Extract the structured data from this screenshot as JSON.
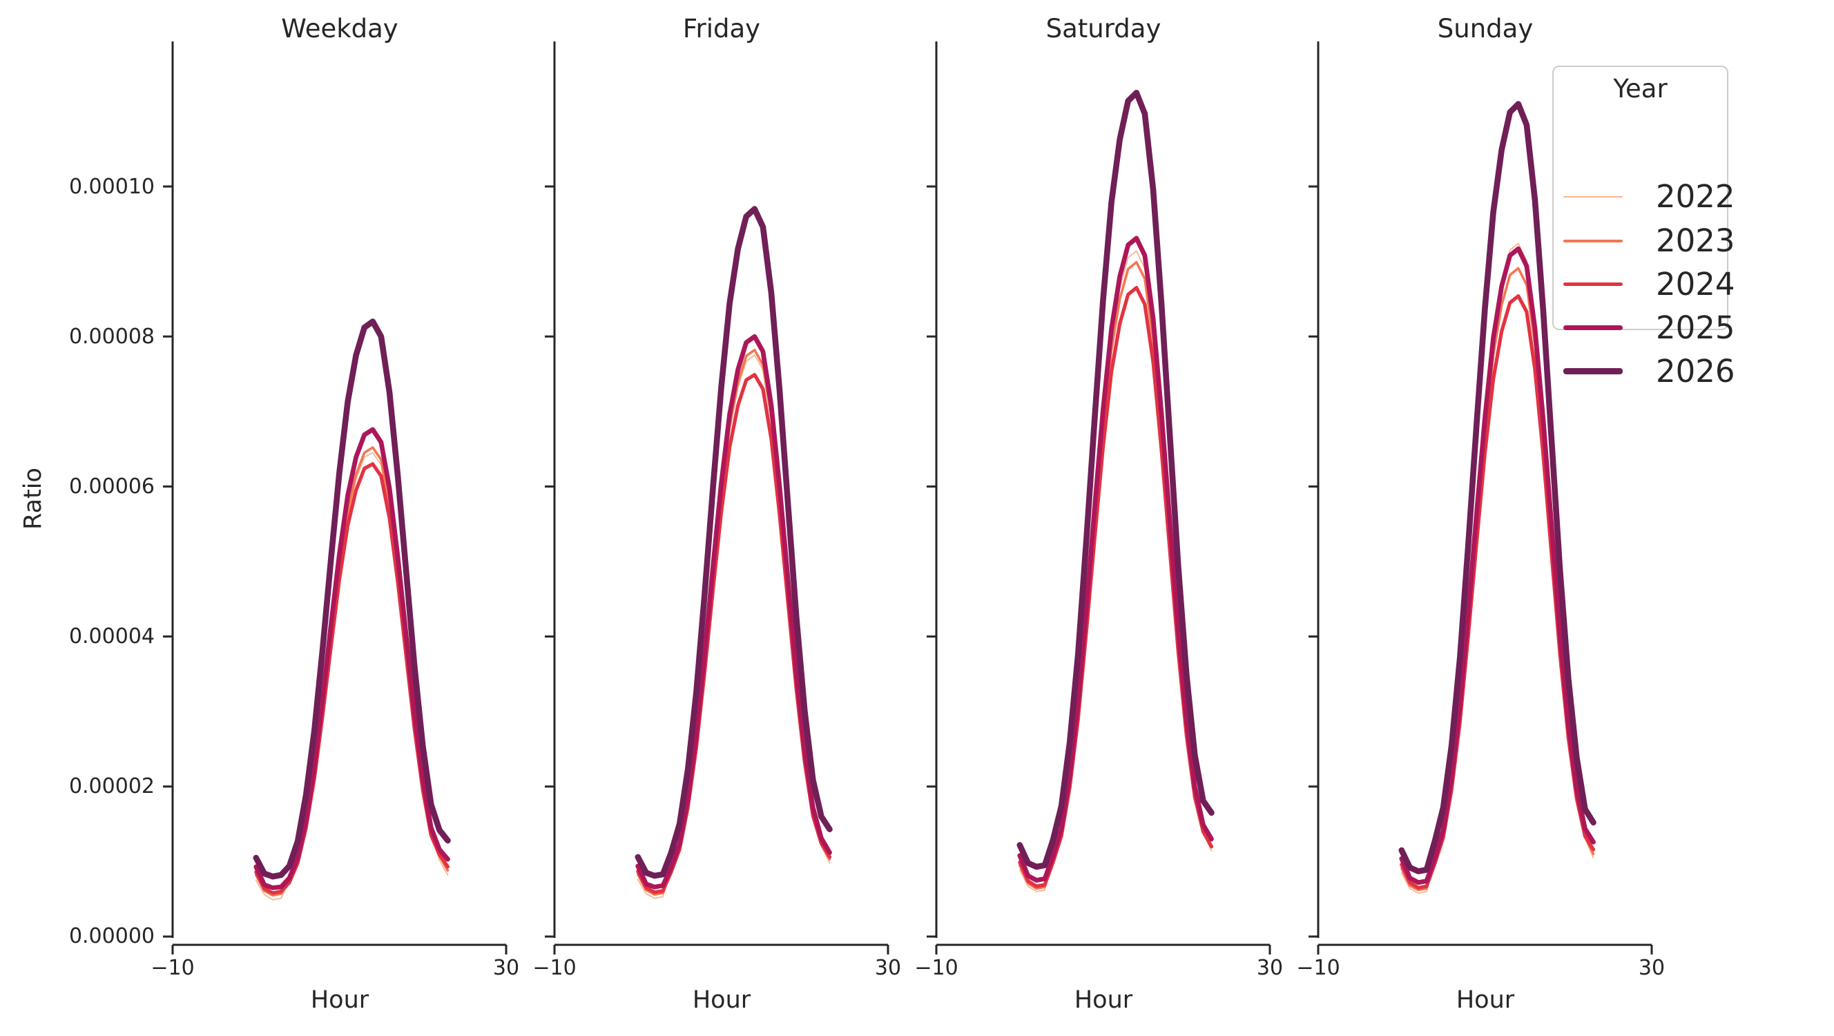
{
  "figure": {
    "background_color": "#ffffff",
    "text_color": "#262626",
    "spine_color": "#262626"
  },
  "chart_data": {
    "type": "line",
    "title": "",
    "xlabel": "Hour",
    "ylabel": "Ratio",
    "xlim": [
      -10,
      30
    ],
    "ylim": [
      0,
      0.000118
    ],
    "grid": false,
    "x_ticks": [
      -10,
      30
    ],
    "x_tick_labels": [
      "−10",
      "30"
    ],
    "y_ticks": [
      0.0,
      2e-05,
      4e-05,
      6e-05,
      8e-05,
      0.0001
    ],
    "y_tick_labels": [
      "0.00000",
      "0.00002",
      "0.00004",
      "0.00006",
      "0.00008",
      "0.00010"
    ],
    "hours": [
      0,
      1,
      2,
      3,
      4,
      5,
      6,
      7,
      8,
      9,
      10,
      11,
      12,
      13,
      14,
      15,
      16,
      17,
      18,
      19,
      20,
      21,
      22,
      23
    ],
    "y_value_multiplier": 1e-06,
    "legend": {
      "title": "Year",
      "position": "upper right",
      "entries": [
        {
          "label": "2022",
          "color": "#f6b48e",
          "line_width": 1.8
        },
        {
          "label": "2023",
          "color": "#f37651",
          "line_width": 3.6
        },
        {
          "label": "2024",
          "color": "#e13342",
          "line_width": 5.2
        },
        {
          "label": "2025",
          "color": "#ad1759",
          "line_width": 6.8
        },
        {
          "label": "2026",
          "color": "#701f57",
          "line_width": 8.6
        }
      ]
    },
    "facets": [
      {
        "title": "Weekday",
        "series": [
          {
            "year": "2022",
            "values": [
              7.5,
              5.6,
              4.9,
              5.1,
              7.4,
              10.0,
              14.8,
              21.6,
              30.3,
              39.7,
              48.7,
              56.1,
              61.0,
              63.9,
              64.5,
              62.9,
              57.1,
              48.4,
              38.4,
              28.4,
              20.0,
              13.9,
              10.2,
              8.2
            ]
          },
          {
            "year": "2023",
            "values": [
              8.2,
              6.1,
              5.5,
              5.7,
              7.5,
              10.1,
              15.0,
              21.8,
              30.6,
              40.1,
              49.2,
              56.7,
              61.6,
              64.5,
              65.2,
              63.6,
              57.7,
              48.9,
              38.8,
              28.7,
              20.2,
              14.0,
              10.8,
              8.8
            ]
          },
          {
            "year": "2024",
            "values": [
              8.6,
              6.4,
              5.8,
              6.0,
              7.2,
              9.8,
              14.5,
              21.1,
              29.6,
              38.7,
              47.6,
              54.8,
              59.5,
              62.4,
              63.0,
              61.4,
              55.8,
              47.3,
              37.5,
              27.7,
              19.5,
              13.5,
              10.9,
              9.3
            ]
          },
          {
            "year": "2025",
            "values": [
              9.3,
              6.9,
              6.5,
              6.6,
              7.8,
              10.5,
              15.5,
              22.6,
              31.8,
              41.6,
              51.0,
              58.8,
              63.9,
              66.9,
              67.6,
              65.9,
              59.8,
              50.7,
              40.2,
              29.7,
              21.0,
              14.5,
              11.6,
              10.3
            ]
          },
          {
            "year": "2026",
            "values": [
              10.5,
              8.4,
              8.0,
              8.2,
              9.4,
              12.7,
              18.9,
              27.5,
              38.5,
              50.4,
              61.9,
              71.3,
              77.5,
              81.2,
              82.0,
              80.0,
              72.6,
              61.5,
              48.8,
              36.1,
              25.4,
              17.6,
              14.2,
              12.8
            ]
          }
        ]
      },
      {
        "title": "Friday",
        "series": [
          {
            "year": "2022",
            "values": [
              7.6,
              5.7,
              5.1,
              5.3,
              8.9,
              12.0,
              17.8,
              26.0,
              36.4,
              47.7,
              58.5,
              67.4,
              73.2,
              76.7,
              77.5,
              75.6,
              68.6,
              58.1,
              46.1,
              34.1,
              24.0,
              16.7,
              12.1,
              9.8
            ]
          },
          {
            "year": "2023",
            "values": [
              8.3,
              6.2,
              5.6,
              5.8,
              9.0,
              12.1,
              18.0,
              26.2,
              36.8,
              48.1,
              59.0,
              68.0,
              73.9,
              77.4,
              78.2,
              76.2,
              69.2,
              58.7,
              46.5,
              34.4,
              24.2,
              16.8,
              12.5,
              10.3
            ]
          },
          {
            "year": "2024",
            "values": [
              8.7,
              6.5,
              5.9,
              6.1,
              8.6,
              11.6,
              17.2,
              25.1,
              35.2,
              46.1,
              56.5,
              65.2,
              70.8,
              74.2,
              74.9,
              73.0,
              66.3,
              56.2,
              44.6,
              33.0,
              23.2,
              16.1,
              12.4,
              10.6
            ]
          },
          {
            "year": "2025",
            "values": [
              9.4,
              7.0,
              6.6,
              6.8,
              9.2,
              12.4,
              18.4,
              26.8,
              37.6,
              49.2,
              60.4,
              69.6,
              75.6,
              79.2,
              80.0,
              78.0,
              70.8,
              60.0,
              47.6,
              35.2,
              24.8,
              17.2,
              13.1,
              11.2
            ]
          },
          {
            "year": "2026",
            "values": [
              10.6,
              8.5,
              8.1,
              8.3,
              11.2,
              15.0,
              22.3,
              32.5,
              45.6,
              59.7,
              73.2,
              84.4,
              91.7,
              96.0,
              97.0,
              94.6,
              85.8,
              72.8,
              57.7,
              42.7,
              30.1,
              20.9,
              16.0,
              14.3
            ]
          }
        ]
      },
      {
        "title": "Saturday",
        "series": [
          {
            "year": "2022",
            "values": [
              8.9,
              6.7,
              6.0,
              6.2,
              10.5,
              14.2,
              21.0,
              30.6,
              43.0,
              56.2,
              69.0,
              79.5,
              86.4,
              90.5,
              91.4,
              89.1,
              80.9,
              68.6,
              54.4,
              40.2,
              28.3,
              19.7,
              13.9,
              11.4
            ]
          },
          {
            "year": "2023",
            "values": [
              9.5,
              7.1,
              6.4,
              6.6,
              10.3,
              13.9,
              20.7,
              30.1,
              42.3,
              55.3,
              67.9,
              78.2,
              85.0,
              89.0,
              89.9,
              87.7,
              79.6,
              67.4,
              53.5,
              39.6,
              27.9,
              19.3,
              14.1,
              11.9
            ]
          },
          {
            "year": "2024",
            "values": [
              9.9,
              7.4,
              6.7,
              6.9,
              9.9,
              13.4,
              19.9,
              29.0,
              40.7,
              53.2,
              65.3,
              75.3,
              81.7,
              85.6,
              86.5,
              84.3,
              76.6,
              64.9,
              51.5,
              38.1,
              26.8,
              18.6,
              14.0,
              12.0
            ]
          },
          {
            "year": "2025",
            "values": [
              10.8,
              8.1,
              7.5,
              7.7,
              10.7,
              14.4,
              21.4,
              31.2,
              43.8,
              57.3,
              70.3,
              81.0,
              88.0,
              92.2,
              93.1,
              90.8,
              82.4,
              69.8,
              55.4,
              41.0,
              28.9,
              20.0,
              14.9,
              13.0
            ]
          },
          {
            "year": "2026",
            "values": [
              12.2,
              9.8,
              9.3,
              9.5,
              12.9,
              17.4,
              25.9,
              37.7,
              52.9,
              69.2,
              84.9,
              97.9,
              106.3,
              111.4,
              112.5,
              109.7,
              99.6,
              84.4,
              66.9,
              49.5,
              34.9,
              24.2,
              18.1,
              16.5
            ]
          }
        ]
      },
      {
        "title": "Sunday",
        "series": [
          {
            "year": "2022",
            "values": [
              8.5,
              6.4,
              5.8,
              6.0,
              10.6,
              14.3,
              21.3,
              31.0,
              43.4,
              56.8,
              69.8,
              80.4,
              87.3,
              91.5,
              92.4,
              90.1,
              81.8,
              69.3,
              55.0,
              40.7,
              28.6,
              19.9,
              13.1,
              10.5
            ]
          },
          {
            "year": "2023",
            "values": [
              9.1,
              6.8,
              6.2,
              6.4,
              10.2,
              13.8,
              20.5,
              29.8,
              41.9,
              54.8,
              67.3,
              77.5,
              84.2,
              88.2,
              89.1,
              86.9,
              78.9,
              66.8,
              53.0,
              39.2,
              27.6,
              19.2,
              13.3,
              11.0
            ]
          },
          {
            "year": "2024",
            "values": [
              9.6,
              7.2,
              6.5,
              6.7,
              9.8,
              13.2,
              19.6,
              28.6,
              40.1,
              52.5,
              64.5,
              74.3,
              80.7,
              84.5,
              85.4,
              83.3,
              75.6,
              64.1,
              50.8,
              37.6,
              26.5,
              18.4,
              13.4,
              11.6
            ]
          },
          {
            "year": "2025",
            "values": [
              10.4,
              7.8,
              7.2,
              7.4,
              10.5,
              14.2,
              21.1,
              30.7,
              43.1,
              56.4,
              69.2,
              79.8,
              86.7,
              90.8,
              91.7,
              89.4,
              81.1,
              68.8,
              54.6,
              40.3,
              28.4,
              19.7,
              14.4,
              12.6
            ]
          },
          {
            "year": "2026",
            "values": [
              11.5,
              9.2,
              8.7,
              8.9,
              12.8,
              17.2,
              25.5,
              37.2,
              52.2,
              68.3,
              83.8,
              96.6,
              104.9,
              109.9,
              111.0,
              108.2,
              98.2,
              83.3,
              66.0,
              48.8,
              34.4,
              23.9,
              17.0,
              15.2
            ]
          }
        ]
      }
    ]
  }
}
